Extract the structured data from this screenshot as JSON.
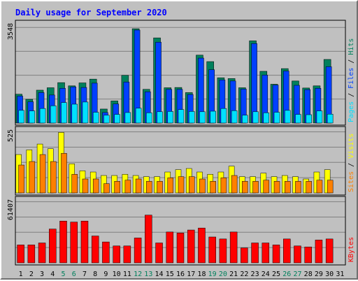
{
  "chart_data": {
    "type": "bar",
    "title": "Daily usage for September 2020",
    "categories": [
      "1",
      "2",
      "3",
      "4",
      "5",
      "6",
      "7",
      "8",
      "9",
      "10",
      "11",
      "12",
      "13",
      "14",
      "15",
      "16",
      "17",
      "18",
      "19",
      "20",
      "21",
      "22",
      "23",
      "24",
      "25",
      "26",
      "27",
      "28",
      "29",
      "30",
      "31"
    ],
    "weekend_days": [
      "5",
      "6",
      "12",
      "13",
      "19",
      "20",
      "26",
      "27"
    ],
    "panels": [
      {
        "id": "hits",
        "max_label": "3548",
        "ylim": [
          0,
          3548
        ],
        "legend": [
          {
            "label": "Pages",
            "color": "#00e0ff"
          },
          {
            "label": "Files",
            "color": "#0040ff"
          },
          {
            "label": "Hits",
            "color": "#00805c"
          }
        ],
        "series": [
          {
            "name": "Hits",
            "color": "#00805c",
            "values": [
              1070,
              880,
              1220,
              1310,
              1500,
              1380,
              1490,
              1630,
              520,
              820,
              1770,
              3500,
              1250,
              3160,
              1310,
              1320,
              1130,
              2520,
              2280,
              1680,
              1650,
              1310,
              3050,
              1920,
              1440,
              2020,
              1560,
              1300,
              1380,
              2360,
              null
            ]
          },
          {
            "name": "Files",
            "color": "#0040ff",
            "values": [
              1000,
              790,
              1130,
              1040,
              1290,
              1340,
              1320,
              1480,
              390,
              710,
              1520,
              3450,
              1160,
              3000,
              1250,
              1250,
              1060,
              2410,
              1980,
              1600,
              1560,
              1260,
              2950,
              1780,
              1410,
              1930,
              1400,
              1240,
              1290,
              2090,
              null
            ]
          },
          {
            "name": "Pages",
            "color": "#00e0ff",
            "values": [
              470,
              450,
              540,
              640,
              760,
              700,
              780,
              400,
              290,
              320,
              390,
              550,
              380,
              420,
              430,
              500,
              430,
              420,
              440,
              540,
              460,
              290,
              420,
              380,
              400,
              470,
              320,
              310,
              450,
              330,
              null
            ]
          }
        ]
      },
      {
        "id": "visits",
        "max_label": "525",
        "ylim": [
          0,
          525
        ],
        "legend": [
          {
            "label": "Sites",
            "color": "#ff8000"
          },
          {
            "label": "Visits",
            "color": "#ffff00"
          }
        ],
        "series": [
          {
            "name": "Visits",
            "color": "#ffff00",
            "values": [
              330,
              370,
              420,
              380,
              520,
              250,
              190,
              180,
              150,
              150,
              160,
              150,
              140,
              140,
              180,
              200,
              210,
              180,
              160,
              180,
              230,
              140,
              140,
              170,
              140,
              150,
              140,
              120,
              180,
              200,
              null
            ]
          },
          {
            "name": "Sites",
            "color": "#ff8000",
            "values": [
              240,
              270,
              330,
              270,
              340,
              160,
              120,
              120,
              80,
              100,
              110,
              120,
              100,
              100,
              130,
              140,
              140,
              120,
              100,
              130,
              150,
              100,
              100,
              110,
              100,
              100,
              100,
              100,
              110,
              110,
              null
            ]
          }
        ]
      },
      {
        "id": "kbytes",
        "max_label": "61407",
        "ylim": [
          0,
          61407
        ],
        "legend": [
          {
            "label": "KBytes",
            "color": "#ff0000"
          }
        ],
        "series": [
          {
            "name": "KBytes",
            "color": "#ff0000",
            "values": [
              18000,
              18000,
              20000,
              34000,
              42000,
              41000,
              42000,
              27000,
              21000,
              17000,
              17000,
              25000,
              48000,
              20000,
              31000,
              30000,
              33000,
              35000,
              26000,
              24000,
              31000,
              15000,
              20000,
              20000,
              18000,
              24000,
              17000,
              16000,
              23000,
              24000,
              null
            ]
          }
        ]
      }
    ]
  },
  "colors": {
    "title": "#0000ff",
    "frame_bg": "#c0c0c0",
    "label_default": "#000000",
    "label_weekend": "#00805c",
    "divider": "#000000"
  }
}
